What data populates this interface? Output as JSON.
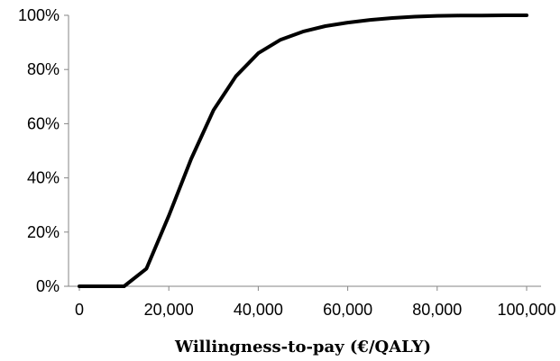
{
  "chart_data": {
    "type": "line",
    "title": "",
    "xlabel": "Willingness-to-pay (€/QALY)",
    "ylabel": "",
    "xlim": [
      0,
      100000
    ],
    "ylim": [
      0,
      100
    ],
    "grid": false,
    "x_ticks": [
      {
        "value": 0,
        "label": "0"
      },
      {
        "value": 20000,
        "label": "20,000"
      },
      {
        "value": 40000,
        "label": "40,000"
      },
      {
        "value": 60000,
        "label": "60,000"
      },
      {
        "value": 80000,
        "label": "80,000"
      },
      {
        "value": 100000,
        "label": "100,000"
      }
    ],
    "y_ticks": [
      {
        "value": 0,
        "label": "0%"
      },
      {
        "value": 20,
        "label": "20%"
      },
      {
        "value": 40,
        "label": "40%"
      },
      {
        "value": 60,
        "label": "60%"
      },
      {
        "value": 80,
        "label": "80%"
      },
      {
        "value": 100,
        "label": "100%"
      }
    ],
    "series": [
      {
        "color": "#000000",
        "x": [
          0,
          5000,
          10000,
          15000,
          20000,
          25000,
          30000,
          35000,
          40000,
          45000,
          50000,
          55000,
          60000,
          65000,
          70000,
          75000,
          80000,
          85000,
          90000,
          95000,
          100000
        ],
        "y": [
          0,
          0,
          0,
          6.5,
          26,
          47,
          65,
          77.5,
          86,
          91,
          94,
          96,
          97.3,
          98.3,
          99,
          99.5,
          99.8,
          99.9,
          99.95,
          100,
          100
        ]
      }
    ]
  }
}
